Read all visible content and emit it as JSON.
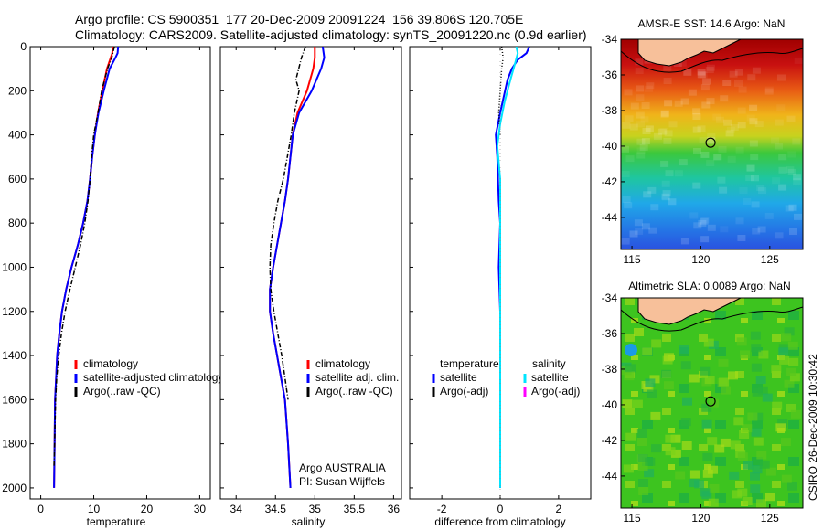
{
  "header": {
    "line1": "Argo profile: CS 5900351_177 20-Dec-2009 20091224_156 39.806S 120.705E",
    "line2": "Climatology: CARS2009. Satellite-adjusted climatology: synTS_20091220.nc (0.9d earlier)"
  },
  "side_label": "CSIRO 26-Dec-2009 10:30:42",
  "colors": {
    "climatology": "#ff0000",
    "satellite": "#0000ff",
    "argo": "#000000",
    "sal_satellite": "#00e5ff",
    "sal_argo": "#ff00ff",
    "land": "#f7c09a"
  },
  "chart_data": [
    {
      "type": "line",
      "panel": "temperature",
      "xlabel": "temperature",
      "ylabel": "",
      "xlim": [
        -2,
        32
      ],
      "ylim": [
        2050,
        0
      ],
      "xticks": [
        0,
        10,
        20,
        30
      ],
      "yticks": [
        0,
        200,
        400,
        600,
        800,
        1000,
        1200,
        1400,
        1600,
        1800,
        2000
      ],
      "legend_position": "lower-center",
      "series": [
        {
          "name": "climatology",
          "color": "#ff0000",
          "style": "solid",
          "x": [
            13.6,
            13.5,
            13.2,
            12.5,
            11.6,
            10.8,
            10.2,
            9.7,
            9.3,
            8.8,
            8.0,
            7.0,
            5.8,
            4.8,
            4.0,
            3.5,
            3.1,
            2.9,
            2.7,
            2.6,
            2.5
          ],
          "y": [
            0,
            30,
            50,
            100,
            200,
            300,
            400,
            500,
            600,
            700,
            800,
            900,
            1000,
            1100,
            1200,
            1300,
            1400,
            1500,
            1600,
            1800,
            2000
          ]
        },
        {
          "name": "satellite-adjusted climatology",
          "color": "#0000ff",
          "style": "solid",
          "x": [
            14.6,
            14.5,
            14.1,
            13.0,
            11.9,
            10.9,
            10.2,
            9.7,
            9.3,
            8.8,
            8.0,
            7.0,
            5.8,
            4.8,
            4.0,
            3.5,
            3.1,
            2.9,
            2.7,
            2.6,
            2.5
          ],
          "y": [
            0,
            30,
            50,
            100,
            200,
            300,
            400,
            500,
            600,
            700,
            800,
            900,
            1000,
            1100,
            1200,
            1300,
            1400,
            1500,
            1600,
            1800,
            2000
          ]
        },
        {
          "name": "Argo(..raw -QC)",
          "color": "#000000",
          "style": "dashdot",
          "x": [
            13.9,
            13.4,
            12.6,
            11.5,
            10.8,
            10.0,
            9.6,
            9.3,
            8.9,
            8.3,
            7.5,
            6.5,
            5.5,
            4.6,
            3.9,
            3.4,
            3.0,
            2.8,
            2.6,
            2.5
          ],
          "y": [
            0,
            50,
            100,
            200,
            300,
            400,
            500,
            600,
            700,
            800,
            900,
            1000,
            1100,
            1200,
            1300,
            1400,
            1500,
            1600,
            1800,
            1900
          ]
        }
      ]
    },
    {
      "type": "line",
      "panel": "salinity",
      "xlabel": "salinity",
      "ylabel": "",
      "xlim": [
        33.8,
        36.1
      ],
      "ylim": [
        2050,
        0
      ],
      "xticks": [
        34,
        34.5,
        35,
        35.5,
        36
      ],
      "annotations": [
        "Argo AUSTRALIA",
        "PI: Susan Wijffels"
      ],
      "legend_position": "lower-center",
      "series": [
        {
          "name": "climatology",
          "color": "#ff0000",
          "style": "solid",
          "x": [
            35.0,
            35.0,
            34.98,
            34.9,
            34.78,
            34.72,
            34.69,
            34.66,
            34.62,
            34.57,
            34.52,
            34.47,
            34.43,
            34.43,
            34.47,
            34.52,
            34.57,
            34.62,
            34.66,
            34.69
          ],
          "y": [
            0,
            50,
            100,
            200,
            300,
            400,
            500,
            600,
            700,
            800,
            900,
            1000,
            1100,
            1200,
            1300,
            1400,
            1500,
            1600,
            1800,
            2000
          ]
        },
        {
          "name": "satellite adj. clim.",
          "color": "#0000ff",
          "style": "solid",
          "x": [
            35.1,
            35.12,
            35.08,
            34.96,
            34.8,
            34.72,
            34.69,
            34.66,
            34.62,
            34.57,
            34.52,
            34.47,
            34.43,
            34.43,
            34.47,
            34.52,
            34.57,
            34.62,
            34.66,
            34.69
          ],
          "y": [
            0,
            50,
            100,
            200,
            300,
            400,
            500,
            600,
            700,
            800,
            900,
            1000,
            1100,
            1200,
            1300,
            1400,
            1500,
            1600,
            1800,
            2000
          ]
        },
        {
          "name": "Argo(..raw -QC)",
          "color": "#000000",
          "style": "dashdot",
          "x": [
            34.88,
            34.83,
            34.76,
            34.8,
            34.74,
            34.7,
            34.65,
            34.6,
            34.53,
            34.48,
            34.44,
            34.43,
            34.44,
            34.48,
            34.53,
            34.58,
            34.62,
            34.66
          ],
          "y": [
            0,
            50,
            150,
            200,
            300,
            400,
            500,
            600,
            700,
            800,
            900,
            1000,
            1100,
            1200,
            1300,
            1400,
            1500,
            1600
          ]
        }
      ]
    },
    {
      "type": "line",
      "panel": "difference",
      "xlabel": "difference from climatology",
      "ylabel": "",
      "xlim": [
        -3.1,
        3.1
      ],
      "ylim": [
        2050,
        0
      ],
      "xticks": [
        -2,
        0,
        2
      ],
      "legend_position": "lower-center",
      "legend_headers": [
        "temperature",
        "salinity"
      ],
      "series": [
        {
          "name": "satellite",
          "group": "temperature",
          "color": "#0000ff",
          "style": "solid",
          "x": [
            1.0,
            0.9,
            0.6,
            0.4,
            0.25,
            0.0,
            -0.15,
            -0.1,
            -0.05,
            0.0,
            -0.05,
            0.0,
            0.0,
            0.0,
            0.0
          ],
          "y": [
            0,
            30,
            60,
            100,
            150,
            300,
            400,
            500,
            700,
            800,
            1000,
            1200,
            1400,
            1700,
            2000
          ]
        },
        {
          "name": "Argo(-adj)",
          "group": "temperature",
          "color": "#000000",
          "style": "dotted",
          "x": [
            0.05,
            0.1,
            0.05,
            0.0,
            -0.05,
            0.0
          ],
          "y": [
            0,
            50,
            100,
            200,
            300,
            400
          ]
        },
        {
          "name": "satellite",
          "group": "salinity",
          "color": "#00e5ff",
          "style": "solid",
          "x": [
            0.55,
            0.6,
            0.5,
            0.35,
            0.15,
            0.0,
            -0.1,
            0.0,
            0.0,
            0.0,
            0.0
          ],
          "y": [
            0,
            30,
            80,
            150,
            250,
            350,
            450,
            600,
            1000,
            1500,
            2000
          ]
        },
        {
          "name": "Argo(-adj)",
          "group": "salinity",
          "color": "#ff00ff",
          "style": "solid",
          "x": [],
          "y": []
        }
      ]
    },
    {
      "type": "heatmap",
      "panel": "sst-map",
      "title": "AMSR-E SST: 14.6 Argo: NaN",
      "xlim": [
        114.2,
        127.4
      ],
      "ylim": [
        -45.8,
        -34
      ],
      "xticks": [
        115,
        120,
        125
      ],
      "yticks": [
        -34,
        -36,
        -38,
        -40,
        -42,
        -44
      ],
      "argo_position": [
        120.705,
        -39.806
      ],
      "color_gradient_north_to_south": [
        "#a80000",
        "#e8501a",
        "#f0c21a",
        "#3cc83c",
        "#23a7e0",
        "#2a5ae6"
      ]
    },
    {
      "type": "heatmap",
      "panel": "sla-map",
      "title": "Altimetric SLA: 0.0089 Argo: NaN",
      "xlim": [
        114.2,
        127.4
      ],
      "ylim": [
        -45.8,
        -34
      ],
      "xticks": [
        115,
        120,
        125
      ],
      "yticks": [
        -34,
        -36,
        -38,
        -40,
        -42,
        -44
      ],
      "argo_position": [
        120.705,
        -39.806
      ],
      "dominant_color": "#36c51f"
    }
  ]
}
